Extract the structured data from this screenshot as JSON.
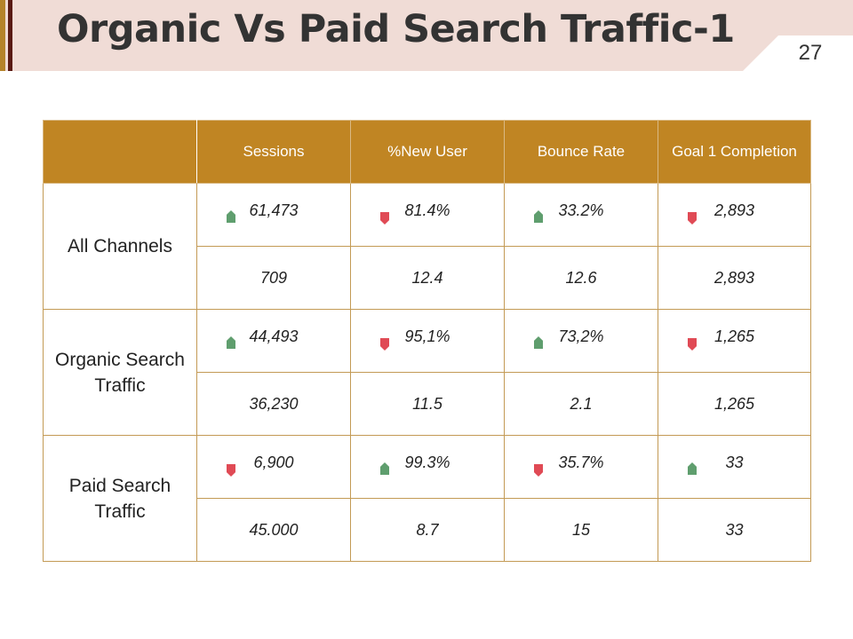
{
  "slide": {
    "title": "Organic Vs Paid Search Traffic-1",
    "page_number": "27",
    "colors": {
      "header_bg": "#f0dcd6",
      "accent": "#b5832a",
      "table_header": "#c08523",
      "up_indicator": "#5f9e6e",
      "down_indicator": "#e04a55",
      "good_text": "#1f9a4a",
      "bad_text": "#a8151c"
    }
  },
  "table": {
    "columns": [
      "",
      "Sessions",
      "%New User",
      "Bounce Rate",
      "Goal 1 Completion"
    ],
    "groups": [
      {
        "label": "All Channels",
        "metrics": [
          {
            "value": "61,473",
            "trend": "up"
          },
          {
            "value": "81.4%",
            "trend": "down"
          },
          {
            "value": "33.2%",
            "trend": "up"
          },
          {
            "value": "2,893",
            "trend": "down"
          }
        ],
        "changes": [
          {
            "value": "709",
            "tone": "good"
          },
          {
            "value": "12.4",
            "tone": "bad"
          },
          {
            "value": "12.6",
            "tone": "good"
          },
          {
            "value": "2,893",
            "tone": "bad"
          }
        ]
      },
      {
        "label": "Organic Search Traffic",
        "metrics": [
          {
            "value": "44,493",
            "trend": "up"
          },
          {
            "value": "95,1%",
            "trend": "down"
          },
          {
            "value": "73,2%",
            "trend": "up"
          },
          {
            "value": "1,265",
            "trend": "down"
          }
        ],
        "changes": [
          {
            "value": "36,230",
            "tone": "neutral"
          },
          {
            "value": "11.5",
            "tone": "neutral"
          },
          {
            "value": "2.1",
            "tone": "neutral"
          },
          {
            "value": "1,265",
            "tone": "neutral"
          }
        ]
      },
      {
        "label": "Paid Search Traffic",
        "metrics": [
          {
            "value": "6,900",
            "trend": "down"
          },
          {
            "value": "99.3%",
            "trend": "up"
          },
          {
            "value": "35.7%",
            "trend": "down"
          },
          {
            "value": "33",
            "trend": "up"
          }
        ],
        "changes": [
          {
            "value": "45.000",
            "tone": "bad"
          },
          {
            "value": "8.7",
            "tone": "good"
          },
          {
            "value": "15",
            "tone": "bad"
          },
          {
            "value": "33",
            "tone": "good"
          }
        ]
      }
    ]
  }
}
